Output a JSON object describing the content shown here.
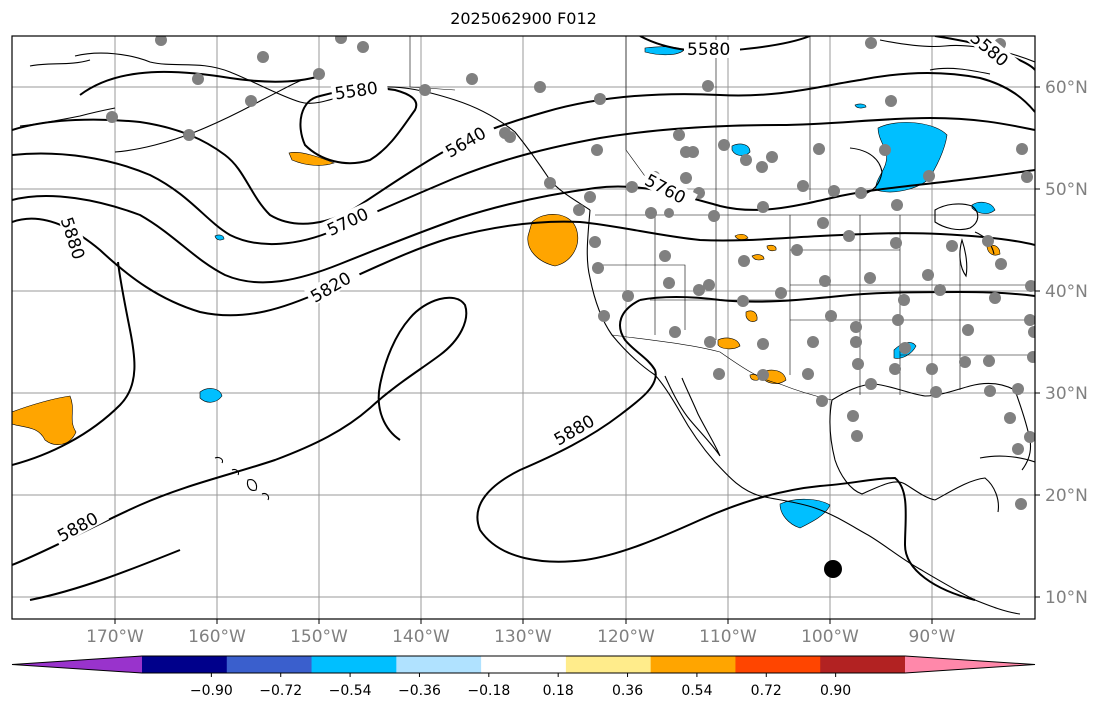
{
  "title": "2025062900 F012",
  "longitude_labels": [
    "170°W",
    "160°W",
    "150°W",
    "140°W",
    "130°W",
    "120°W",
    "110°W",
    "100°W",
    "90°W"
  ],
  "latitude_labels": [
    "60°N",
    "50°N",
    "40°N",
    "30°N",
    "20°N",
    "10°N"
  ],
  "contour_labels": [
    "5580",
    "5580",
    "5580",
    "5640",
    "5700",
    "5760",
    "5820",
    "5880",
    "5880",
    "5880"
  ],
  "colorbar": {
    "tick_labels": [
      "−0.90",
      "−0.72",
      "−0.54",
      "−0.36",
      "−0.18",
      "0.18",
      "0.36",
      "0.54",
      "0.72",
      "0.90"
    ],
    "colors": [
      "#9933cc",
      "#00008b",
      "#3a5fcd",
      "#00bfff",
      "#b0e2ff",
      "#ffffff",
      "#ffec8b",
      "#ffa500",
      "#ff4500",
      "#b22222",
      "#ff88aa"
    ]
  },
  "colors": {
    "gridlines": "#999999",
    "contours": "#000000",
    "stations": "#808080",
    "axis_labels": "#808080",
    "negative_fill": "#00bfff",
    "positive_fill": "#ffa500"
  }
}
